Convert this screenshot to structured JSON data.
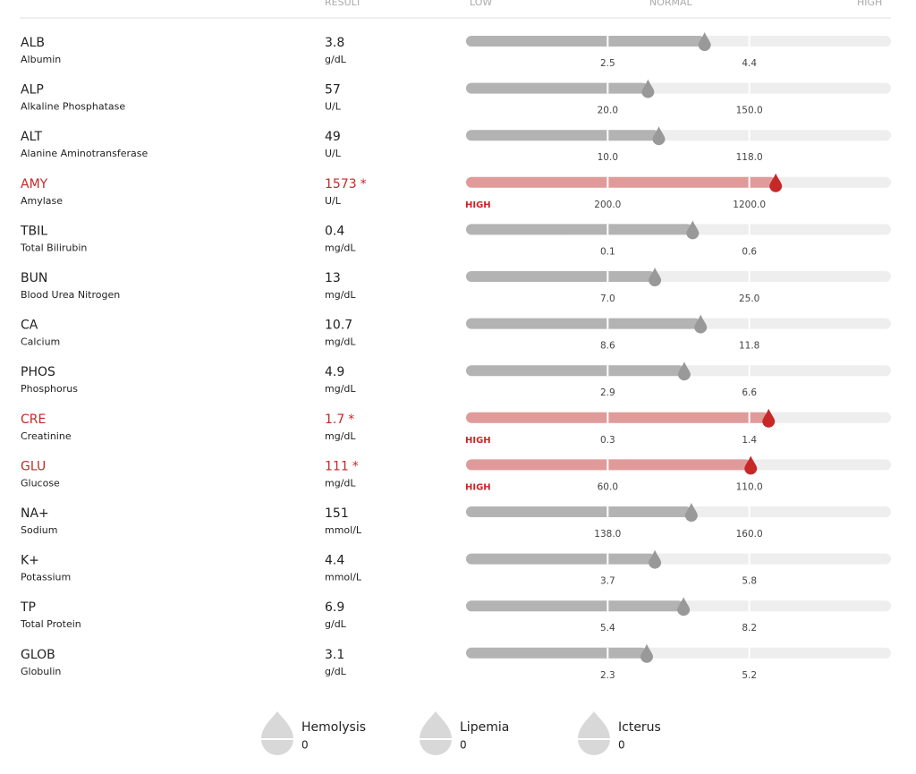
{
  "header": {
    "result": "RESULT",
    "low": "LOW",
    "normal": "NORMAL",
    "high": "HIGH"
  },
  "rows": [
    {
      "code": "ALB",
      "name": "Albumin",
      "result": 3.8,
      "unit": "g/dL",
      "low": 2.5,
      "high": 4.4
    },
    {
      "code": "ALP",
      "name": "Alkaline Phosphatase",
      "result": 57,
      "unit": "U/L",
      "low": {
        "value": 20,
        "label": "20.0"
      },
      "high": {
        "value": 150,
        "label": "150.0"
      }
    },
    {
      "code": "ALT",
      "name": "Alanine Aminotransferase",
      "result": 49,
      "unit": "U/L",
      "low": {
        "value": 10,
        "label": "10.0"
      },
      "high": {
        "value": 118,
        "label": "118.0"
      }
    },
    {
      "code": "AMY",
      "name": "Amylase",
      "result": 1573,
      "flag": "*",
      "unit": "U/L",
      "status": "HIGH",
      "low": {
        "value": 200,
        "label": "200.0"
      },
      "high": {
        "value": 1200,
        "label": "1200.0"
      }
    },
    {
      "code": "TBIL",
      "name": "Total Bilirubin",
      "result": 0.4,
      "unit": "mg/dL",
      "low": 0.1,
      "high": 0.6
    },
    {
      "code": "BUN",
      "name": "Blood Urea Nitrogen",
      "result": 13,
      "unit": "mg/dL",
      "low": {
        "value": 7,
        "label": "7.0"
      },
      "high": {
        "value": 25,
        "label": "25.0"
      }
    },
    {
      "code": "CA",
      "name": "Calcium",
      "result": 10.7,
      "unit": "mg/dL",
      "low": 8.6,
      "high": 11.8
    },
    {
      "code": "PHOS",
      "name": "Phosphorus",
      "result": 4.9,
      "unit": "mg/dL",
      "low": 2.9,
      "high": 6.6
    },
    {
      "code": "CRE",
      "name": "Creatinine",
      "result": 1.7,
      "flag": "*",
      "unit": "mg/dL",
      "status": "HIGH",
      "low": 0.3,
      "high": 1.4
    },
    {
      "code": "GLU",
      "name": "Glucose",
      "result": 111,
      "flag": "*",
      "unit": "mg/dL",
      "status": "HIGH",
      "low": {
        "value": 60,
        "label": "60.0"
      },
      "high": {
        "value": 110,
        "label": "110.0"
      }
    },
    {
      "code": "NA+",
      "name": "Sodium",
      "result": 151,
      "unit": "mmol/L",
      "low": {
        "value": 138,
        "label": "138.0"
      },
      "high": {
        "value": 160,
        "label": "160.0"
      }
    },
    {
      "code": "K+",
      "name": "Potassium",
      "result": 4.4,
      "unit": "mmol/L",
      "low": 3.7,
      "high": 5.8
    },
    {
      "code": "TP",
      "name": "Total Protein",
      "result": 6.9,
      "unit": "g/dL",
      "low": 5.4,
      "high": 8.2
    },
    {
      "code": "GLOB",
      "name": "Globulin",
      "result": 3.1,
      "unit": "g/dL",
      "low": 2.3,
      "high": 5.2
    }
  ],
  "indices": [
    {
      "name": "Hemolysis",
      "value": 0
    },
    {
      "name": "Lipemia",
      "value": 0
    },
    {
      "name": "Icterus",
      "value": 0
    }
  ]
}
